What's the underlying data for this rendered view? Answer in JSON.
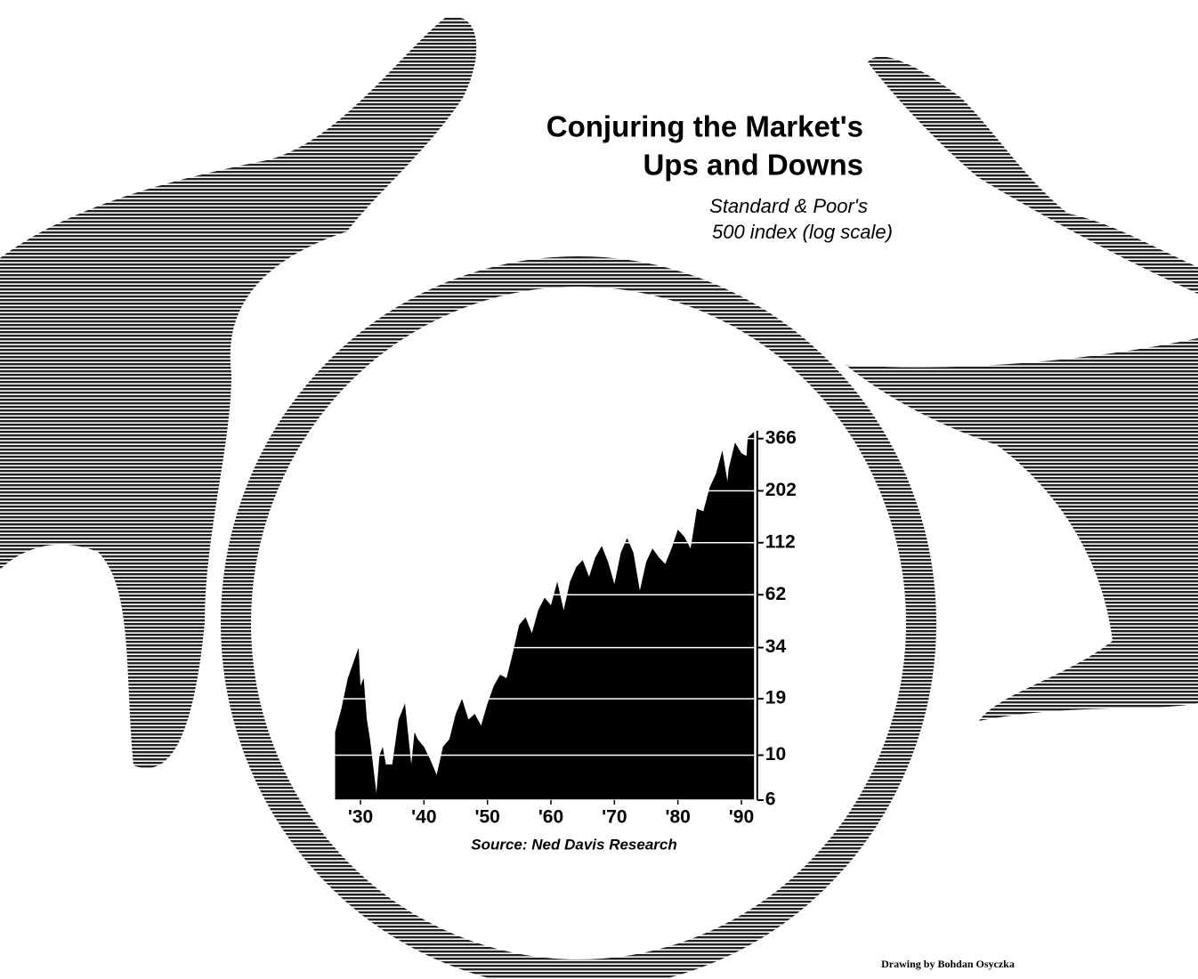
{
  "chart_data": {
    "type": "area",
    "title": [
      "Conjuring the Market's",
      "Ups and Downs"
    ],
    "subtitle": [
      "Standard & Poor's",
      "500 index (log scale)"
    ],
    "source": "Source: Ned Davis Research",
    "credit": "Drawing by Bohdan Osyczka",
    "color": "#000000",
    "log_scale": true,
    "grid": true,
    "x": [
      1926,
      1927,
      1928,
      1929.7,
      1930,
      1930.5,
      1931,
      1931.5,
      1932.5,
      1933,
      1933.5,
      1934,
      1935,
      1936,
      1937,
      1938,
      1938.5,
      1939,
      1940,
      1941,
      1942,
      1943,
      1944,
      1945,
      1946,
      1947,
      1948,
      1949,
      1950,
      1951,
      1952,
      1953,
      1954,
      1955,
      1956,
      1957,
      1958,
      1959,
      1960,
      1961,
      1962,
      1963,
      1964,
      1965,
      1966,
      1967,
      1968,
      1969,
      1970,
      1971,
      1972,
      1973,
      1974,
      1975,
      1976,
      1977,
      1978,
      1979,
      1980,
      1981,
      1982,
      1983,
      1984,
      1985,
      1986,
      1987,
      1987.8,
      1988,
      1989,
      1990,
      1990.8,
      1991,
      1992
    ],
    "values": [
      13,
      17,
      24,
      34,
      22,
      24,
      15,
      12,
      6.5,
      10,
      11,
      9,
      9,
      15,
      18,
      9,
      13,
      12,
      11,
      9.5,
      8,
      11,
      12,
      16,
      19,
      15,
      16,
      14,
      18,
      22,
      25,
      24,
      32,
      44,
      48,
      40,
      52,
      60,
      55,
      72,
      52,
      72,
      85,
      92,
      76,
      95,
      108,
      90,
      70,
      100,
      118,
      100,
      65,
      90,
      105,
      95,
      88,
      105,
      130,
      120,
      105,
      165,
      160,
      210,
      245,
      320,
      225,
      260,
      350,
      310,
      300,
      370,
      395
    ],
    "xlim": [
      1926,
      1992.5
    ],
    "xticks": [
      {
        "value": 1930,
        "label": "'30"
      },
      {
        "value": 1940,
        "label": "'40"
      },
      {
        "value": 1950,
        "label": "'50"
      },
      {
        "value": 1960,
        "label": "'60"
      },
      {
        "value": 1970,
        "label": "'70"
      },
      {
        "value": 1980,
        "label": "'80"
      },
      {
        "value": 1990,
        "label": "'90"
      }
    ],
    "ylim": [
      6,
      400
    ],
    "yticks": [
      6,
      10,
      19,
      34,
      62,
      112,
      202,
      366
    ]
  }
}
